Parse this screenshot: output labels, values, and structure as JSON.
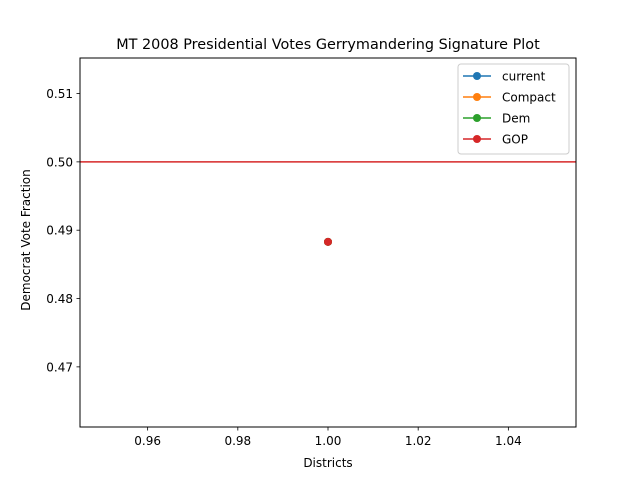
{
  "chart_data": {
    "type": "line",
    "title": "MT 2008 Presidential Votes Gerrymandering Signature Plot",
    "xlabel": "Districts",
    "ylabel": "Democrat Vote Fraction",
    "xlim": [
      0.945,
      1.055
    ],
    "ylim": [
      0.4612,
      0.5152
    ],
    "xticks": [
      0.96,
      0.98,
      1.0,
      1.02,
      1.04
    ],
    "xtick_labels": [
      "0.96",
      "0.98",
      "1.00",
      "1.02",
      "1.04"
    ],
    "yticks": [
      0.47,
      0.48,
      0.49,
      0.5,
      0.51
    ],
    "ytick_labels": [
      "0.47",
      "0.48",
      "0.49",
      "0.50",
      "0.51"
    ],
    "grid": false,
    "legend_position": "top-right",
    "series": [
      {
        "name": "current",
        "color": "#1f77b4",
        "x": [
          1.0
        ],
        "y": [
          0.4883
        ]
      },
      {
        "name": "Compact",
        "color": "#ff7f0e",
        "x": [
          1.0
        ],
        "y": [
          0.4883
        ]
      },
      {
        "name": "Dem",
        "color": "#2ca02c",
        "x": [
          1.0
        ],
        "y": [
          0.4883
        ]
      },
      {
        "name": "GOP",
        "color": "#d62728",
        "x": [
          1.0
        ],
        "y": [
          0.4883
        ]
      }
    ],
    "hline": {
      "y": 0.5,
      "color": "#d62728"
    }
  }
}
